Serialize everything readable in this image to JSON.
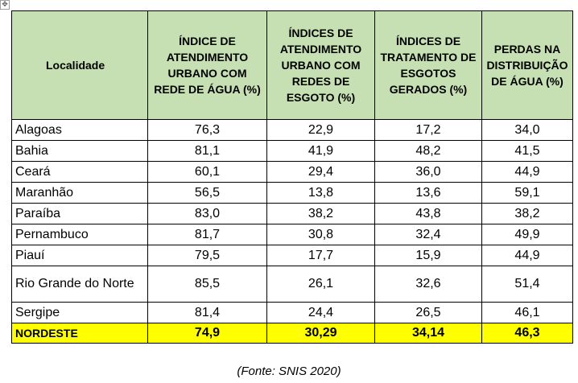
{
  "handle_glyph": "✥",
  "headers": [
    "Localidade",
    "ÍNDICE DE ATENDIMENTO URBANO COM REDE DE ÁGUA (%)",
    "ÍNDICES DE ATENDIMENTO URBANO COM REDES DE ESGOTO (%)",
    "ÍNDICES DE TRATAMENTO DE ESGOTOS GERADOS (%)",
    "PERDAS NA DISTRIBUIÇÃO DE ÁGUA (%)"
  ],
  "rows": [
    [
      "Alagoas",
      "76,3",
      "22,9",
      "17,2",
      "34,0"
    ],
    [
      "Bahia",
      "81,1",
      "41,9",
      "48,2",
      "41,5"
    ],
    [
      "Ceará",
      "60,1",
      "29,4",
      "36,0",
      "44,9"
    ],
    [
      "Maranhão",
      "56,5",
      "13,8",
      "13,6",
      "59,1"
    ],
    [
      "Paraíba",
      "83,0",
      "38,2",
      "43,8",
      "38,2"
    ],
    [
      "Pernambuco",
      "81,7",
      "30,8",
      "32,4",
      "49,9"
    ],
    [
      "Piauí",
      "79,5",
      "17,7",
      "15,9",
      "44,9"
    ],
    [
      "Rio Grande do Norte",
      "85,5",
      "26,1",
      "32,6",
      "51,4"
    ],
    [
      "Sergipe",
      "81,4",
      "24,4",
      "26,5",
      "46,1"
    ]
  ],
  "total": [
    "NORDESTE",
    "74,9",
    "30,29",
    "34,14",
    "46,3"
  ],
  "source": "(Fonte: SNIS 2020)",
  "colors": {
    "header_bg": "#c6e0b4",
    "total_bg": "#ffff00"
  }
}
